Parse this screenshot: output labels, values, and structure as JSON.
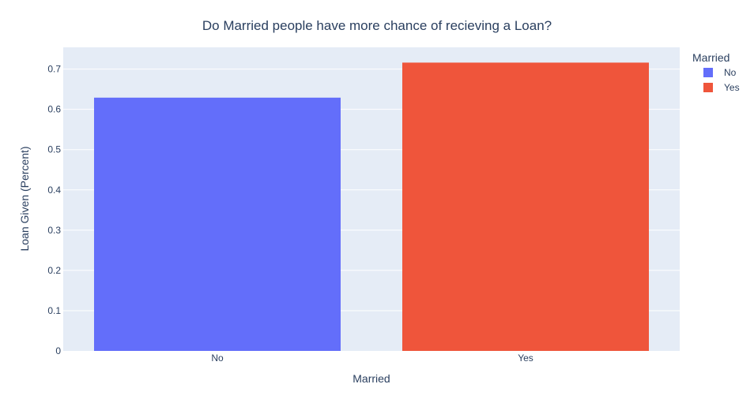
{
  "chart_data": {
    "type": "bar",
    "title": "Do Married people have more chance of recieving a Loan?",
    "xlabel": "Married",
    "ylabel": "Loan Given (Percent)",
    "categories": [
      "No",
      "Yes"
    ],
    "series": [
      {
        "name": "No",
        "values": [
          0.629,
          null
        ],
        "color": "#636efa"
      },
      {
        "name": "Yes",
        "values": [
          null,
          0.716
        ],
        "color": "#ef553b"
      }
    ],
    "ylim": [
      0,
      0.754
    ],
    "yticks": [
      0,
      0.1,
      0.2,
      0.3,
      0.4,
      0.5,
      0.6,
      0.7
    ],
    "ytick_labels": [
      "0",
      "0.1",
      "0.2",
      "0.3",
      "0.4",
      "0.5",
      "0.6",
      "0.7"
    ],
    "grid": true,
    "legend": {
      "title": "Married",
      "placement": "top-right"
    },
    "plot_background": "#e5ecf6"
  }
}
